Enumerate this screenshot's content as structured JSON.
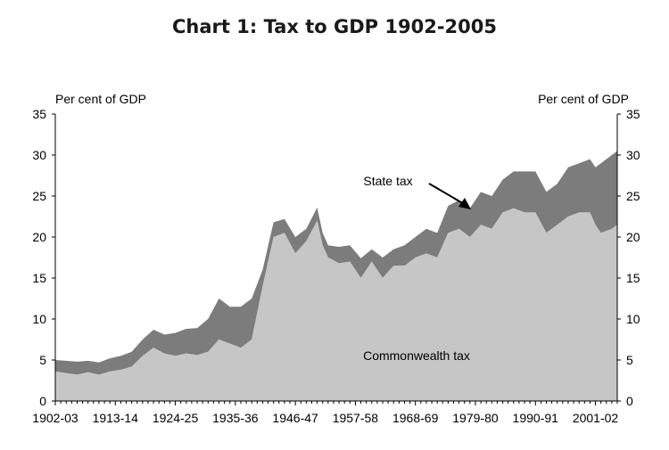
{
  "chart_data": {
    "type": "area",
    "stacked": true,
    "title": "Chart 1: Tax to GDP 1902-2005",
    "ylabel_left": "Per cent of GDP",
    "ylabel_right": "Per cent of GDP",
    "ylim": [
      0,
      35
    ],
    "yticks": [
      "0",
      "5",
      "10",
      "15",
      "20",
      "25",
      "30",
      "35"
    ],
    "xtick_labels": [
      "1902-03",
      "1913-14",
      "1924-25",
      "1935-36",
      "1946-47",
      "1957-58",
      "1968-69",
      "1979-80",
      "1990-91",
      "2001-02"
    ],
    "x": [
      1902,
      1904,
      1906,
      1908,
      1910,
      1912,
      1914,
      1916,
      1918,
      1920,
      1922,
      1924,
      1926,
      1928,
      1930,
      1932,
      1934,
      1936,
      1938,
      1940,
      1942,
      1944,
      1946,
      1948,
      1950,
      1951,
      1952,
      1954,
      1956,
      1958,
      1960,
      1962,
      1964,
      1966,
      1968,
      1970,
      1972,
      1974,
      1976,
      1978,
      1980,
      1982,
      1984,
      1986,
      1988,
      1990,
      1992,
      1994,
      1996,
      1998,
      2000,
      2001,
      2002,
      2004,
      2005
    ],
    "series": [
      {
        "name": "Commonwealth tax",
        "color": "#c6c6c6",
        "values": [
          3.6,
          3.4,
          3.2,
          3.5,
          3.2,
          3.6,
          3.8,
          4.2,
          5.5,
          6.5,
          5.8,
          5.5,
          5.8,
          5.6,
          6.0,
          7.5,
          7.0,
          6.5,
          7.5,
          14.0,
          20.0,
          20.5,
          18.0,
          19.5,
          22.0,
          19.0,
          17.5,
          16.8,
          17.0,
          15.0,
          17.0,
          15.0,
          16.5,
          16.5,
          17.5,
          18.0,
          17.5,
          20.5,
          21.0,
          20.0,
          21.5,
          21.0,
          23.0,
          23.5,
          23.0,
          23.0,
          20.5,
          21.5,
          22.5,
          23.0,
          23.0,
          21.5,
          20.5,
          21.0,
          21.5
        ]
      },
      {
        "name": "State tax",
        "color": "#7c7c7c",
        "values": [
          1.4,
          1.5,
          1.6,
          1.4,
          1.5,
          1.6,
          1.7,
          1.8,
          2.0,
          2.2,
          2.3,
          2.8,
          3.0,
          3.3,
          4.0,
          5.0,
          4.5,
          5.0,
          5.0,
          2.0,
          1.8,
          1.7,
          2.0,
          1.5,
          1.6,
          1.5,
          1.5,
          2.0,
          2.0,
          2.4,
          1.5,
          2.5,
          2.0,
          2.5,
          2.5,
          3.0,
          3.0,
          3.3,
          3.5,
          3.5,
          4.0,
          4.0,
          4.0,
          4.5,
          5.0,
          5.0,
          5.0,
          5.0,
          6.0,
          6.0,
          6.5,
          7.0,
          8.5,
          9.0,
          9.0
        ]
      }
    ],
    "annotations": [
      {
        "text": "State tax",
        "target_series": "State tax",
        "arrow": true
      },
      {
        "text": "Commonwealth tax",
        "target_series": "Commonwealth tax",
        "arrow": false
      }
    ],
    "grid": false,
    "legend": "none"
  },
  "colors": {
    "commonwealth": "#c6c6c6",
    "state": "#7c7c7c",
    "axis": "#000000"
  }
}
